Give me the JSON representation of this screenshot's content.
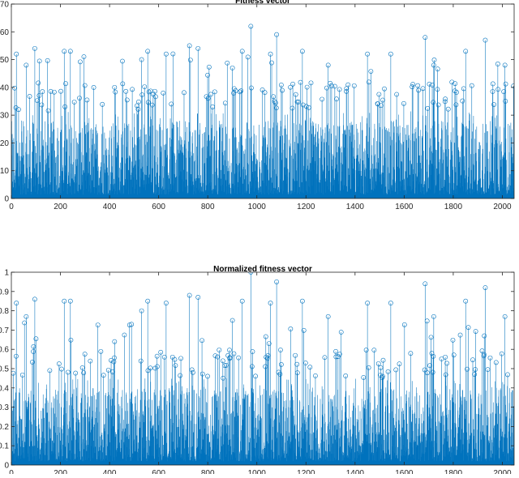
{
  "chart_data": [
    {
      "type": "stem",
      "title": "Fitness vector",
      "xlabel": "",
      "ylabel": "",
      "xlim": [
        0,
        2048
      ],
      "ylim": [
        0,
        70
      ],
      "xticks": [
        0,
        200,
        400,
        600,
        800,
        1000,
        1200,
        1400,
        1600,
        1800,
        2000
      ],
      "yticks": [
        0,
        10,
        20,
        30,
        40,
        50,
        60,
        70
      ],
      "grid": false,
      "color": "#0072BD",
      "n_points": 2048,
      "peaks": [
        {
          "x": 20,
          "y": 52
        },
        {
          "x": 60,
          "y": 48
        },
        {
          "x": 95,
          "y": 54
        },
        {
          "x": 215,
          "y": 53
        },
        {
          "x": 240,
          "y": 53
        },
        {
          "x": 420,
          "y": 40
        },
        {
          "x": 530,
          "y": 50
        },
        {
          "x": 555,
          "y": 53
        },
        {
          "x": 630,
          "y": 52
        },
        {
          "x": 725,
          "y": 55
        },
        {
          "x": 760,
          "y": 54
        },
        {
          "x": 900,
          "y": 47
        },
        {
          "x": 940,
          "y": 53
        },
        {
          "x": 975,
          "y": 62
        },
        {
          "x": 1055,
          "y": 52
        },
        {
          "x": 1080,
          "y": 59
        },
        {
          "x": 1185,
          "y": 53
        },
        {
          "x": 1290,
          "y": 48
        },
        {
          "x": 1450,
          "y": 52
        },
        {
          "x": 1545,
          "y": 52
        },
        {
          "x": 1685,
          "y": 58
        },
        {
          "x": 1720,
          "y": 48
        },
        {
          "x": 1850,
          "y": 53
        },
        {
          "x": 1930,
          "y": 57
        },
        {
          "x": 2010,
          "y": 48
        }
      ]
    },
    {
      "type": "stem",
      "title": "Normalized fitness vector",
      "xlabel": "",
      "ylabel": "",
      "xlim": [
        0,
        2048
      ],
      "ylim": [
        0,
        1
      ],
      "xticks": [
        0,
        200,
        400,
        600,
        800,
        1000,
        1200,
        1400,
        1600,
        1800,
        2000
      ],
      "yticks": [
        0,
        0.1,
        0.2,
        0.3,
        0.4,
        0.5,
        0.6,
        0.7,
        0.8,
        0.9,
        1
      ],
      "grid": false,
      "color": "#0072BD",
      "n_points": 2048,
      "peaks": [
        {
          "x": 20,
          "y": 0.84
        },
        {
          "x": 60,
          "y": 0.77
        },
        {
          "x": 95,
          "y": 0.86
        },
        {
          "x": 215,
          "y": 0.85
        },
        {
          "x": 240,
          "y": 0.85
        },
        {
          "x": 420,
          "y": 0.64
        },
        {
          "x": 530,
          "y": 0.8
        },
        {
          "x": 555,
          "y": 0.85
        },
        {
          "x": 630,
          "y": 0.84
        },
        {
          "x": 725,
          "y": 0.88
        },
        {
          "x": 760,
          "y": 0.87
        },
        {
          "x": 900,
          "y": 0.75
        },
        {
          "x": 940,
          "y": 0.85
        },
        {
          "x": 975,
          "y": 1.0
        },
        {
          "x": 1055,
          "y": 0.84
        },
        {
          "x": 1080,
          "y": 0.95
        },
        {
          "x": 1185,
          "y": 0.85
        },
        {
          "x": 1290,
          "y": 0.77
        },
        {
          "x": 1450,
          "y": 0.84
        },
        {
          "x": 1545,
          "y": 0.84
        },
        {
          "x": 1685,
          "y": 0.94
        },
        {
          "x": 1720,
          "y": 0.77
        },
        {
          "x": 1850,
          "y": 0.85
        },
        {
          "x": 1930,
          "y": 0.92
        },
        {
          "x": 2010,
          "y": 0.77
        }
      ]
    }
  ]
}
